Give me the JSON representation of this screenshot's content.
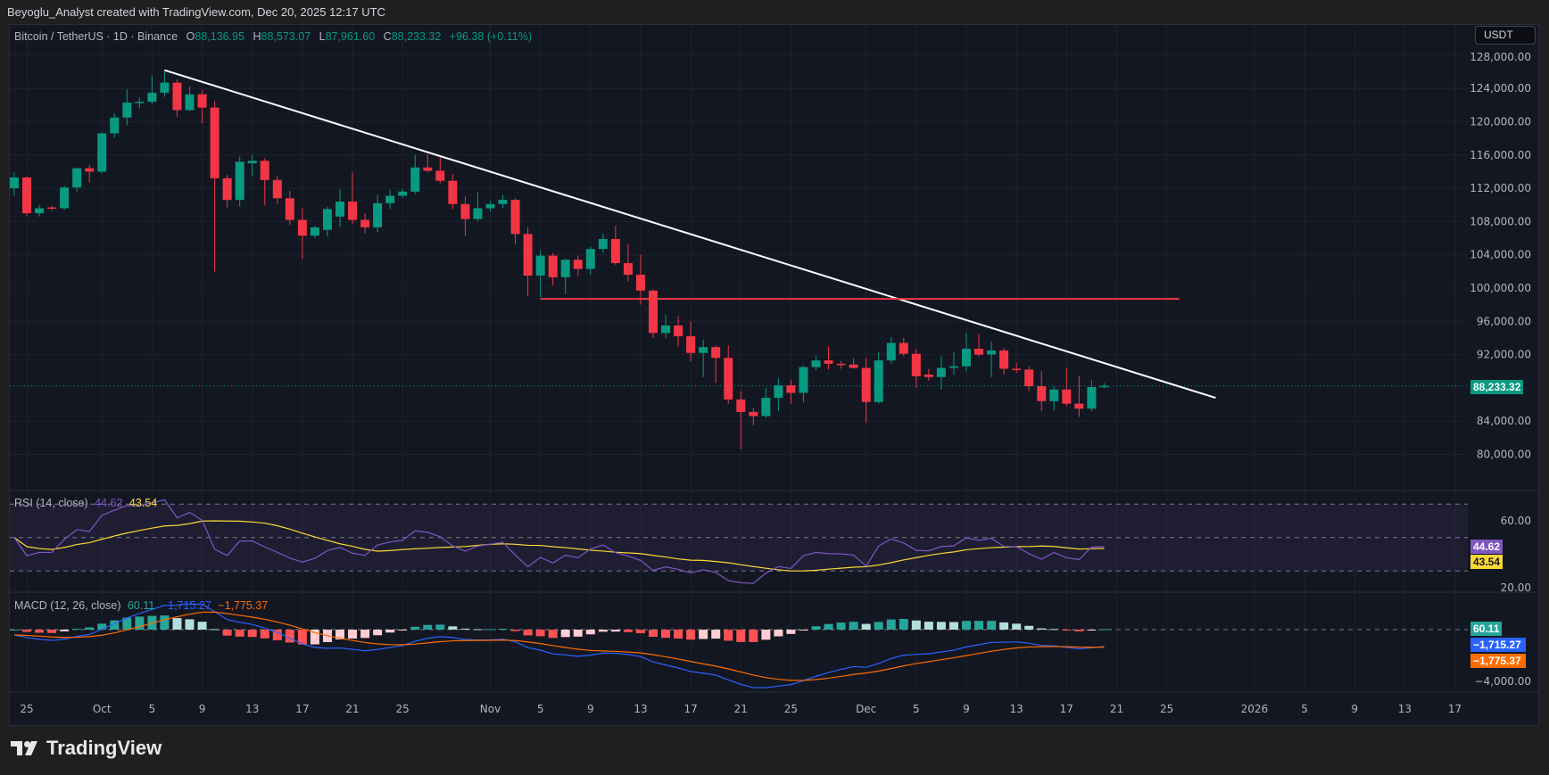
{
  "header": {
    "attribution": "Beyoglu_Analyst created with TradingView.com, Dec 20, 2025 12:17 UTC"
  },
  "legend": {
    "symbol": "Bitcoin / TetherUS · 1D · Binance",
    "o_label": "O",
    "open": "88,136.95",
    "h_label": "H",
    "high": "88,573.07",
    "l_label": "L",
    "low": "87,961.60",
    "c_label": "C",
    "close": "88,233.32",
    "change": "+96.38 (+0.11%)"
  },
  "currency_button": "USDT",
  "rsi": {
    "title": "RSI (14, close)",
    "value": "44.62",
    "ma": "43.54",
    "axis": [
      "60.00",
      "20.00"
    ]
  },
  "macd": {
    "title": "MACD (12, 26, close)",
    "hist": "60.11",
    "macd": "−1,715.27",
    "signal": "−1,775.37",
    "axis_low": "−4,000.00"
  },
  "logo_text": "TradingView",
  "colors": {
    "up": "#089981",
    "down": "#f23645",
    "rsi": "#7e57c2",
    "rsi_ma": "#fdd835",
    "macd": "#2962ff",
    "signal": "#ff6d00",
    "trendline": "#ffffff",
    "level": "#f23645"
  },
  "chart_data": {
    "type": "candlestick",
    "title": "Bitcoin / TetherUS · 1D · Binance",
    "first_candle_date": "Sep 24, 2025",
    "last_price": "88,233.32",
    "last_price_value": 88233.32,
    "ylim": [
      78000,
      128000
    ],
    "price_ticks": [
      "128,000.00",
      "124,000.00",
      "120,000.00",
      "116,000.00",
      "112,000.00",
      "108,000.00",
      "104,000.00",
      "100,000.00",
      "96,000.00",
      "92,000.00",
      "84,000.00",
      "80,000.00"
    ],
    "price_tick_values": [
      128000,
      124000,
      120000,
      116000,
      112000,
      108000,
      104000,
      100000,
      96000,
      92000,
      84000,
      80000
    ],
    "time_ticks": [
      {
        "label": "25",
        "day": 0
      },
      {
        "label": "Oct",
        "day": 6
      },
      {
        "label": "5",
        "day": 10
      },
      {
        "label": "9",
        "day": 14
      },
      {
        "label": "13",
        "day": 18
      },
      {
        "label": "17",
        "day": 22
      },
      {
        "label": "21",
        "day": 26
      },
      {
        "label": "25",
        "day": 30
      },
      {
        "label": "Nov",
        "day": 37
      },
      {
        "label": "5",
        "day": 41
      },
      {
        "label": "9",
        "day": 45
      },
      {
        "label": "13",
        "day": 49
      },
      {
        "label": "17",
        "day": 53
      },
      {
        "label": "21",
        "day": 57
      },
      {
        "label": "25",
        "day": 61
      },
      {
        "label": "Dec",
        "day": 67
      },
      {
        "label": "5",
        "day": 71
      },
      {
        "label": "9",
        "day": 75
      },
      {
        "label": "13",
        "day": 79
      },
      {
        "label": "17",
        "day": 83
      },
      {
        "label": "21",
        "day": 87
      },
      {
        "label": "25",
        "day": 91
      },
      {
        "label": "2026",
        "day": 98
      },
      {
        "label": "5",
        "day": 102
      },
      {
        "label": "9",
        "day": 106
      },
      {
        "label": "13",
        "day": 110
      },
      {
        "label": "17",
        "day": 114
      }
    ],
    "ohlc": [
      [
        112000,
        113900,
        111100,
        113300
      ],
      [
        113300,
        113400,
        108700,
        109000
      ],
      [
        109000,
        110000,
        108600,
        109600
      ],
      [
        109700,
        109900,
        109300,
        109600
      ],
      [
        109600,
        112300,
        109400,
        112100
      ],
      [
        112100,
        114500,
        111600,
        114400
      ],
      [
        114400,
        114800,
        112700,
        114000
      ],
      [
        114000,
        118700,
        113800,
        118600
      ],
      [
        118600,
        121000,
        118100,
        120500
      ],
      [
        120500,
        123900,
        119600,
        122300
      ],
      [
        122300,
        122900,
        121600,
        122400
      ],
      [
        122400,
        125600,
        122100,
        123500
      ],
      [
        123500,
        126200,
        123000,
        124700
      ],
      [
        124700,
        125100,
        120600,
        121400
      ],
      [
        121400,
        124200,
        121300,
        123300
      ],
      [
        123300,
        123800,
        119800,
        121700
      ],
      [
        121700,
        122500,
        102000,
        113200
      ],
      [
        113200,
        113600,
        109700,
        110600
      ],
      [
        110600,
        115800,
        109800,
        115200
      ],
      [
        115000,
        116000,
        113400,
        115300
      ],
      [
        115300,
        115600,
        110000,
        113000
      ],
      [
        113000,
        113500,
        110100,
        110800
      ],
      [
        110800,
        111700,
        107600,
        108200
      ],
      [
        108200,
        109600,
        103500,
        106300
      ],
      [
        106300,
        107500,
        106000,
        107300
      ],
      [
        107000,
        109800,
        106200,
        109500
      ],
      [
        108600,
        111900,
        107300,
        110400
      ],
      [
        110400,
        113900,
        107700,
        108200
      ],
      [
        108200,
        109000,
        106600,
        107300
      ],
      [
        107300,
        111200,
        106700,
        110200
      ],
      [
        110200,
        111800,
        109500,
        111100
      ],
      [
        111100,
        111900,
        110900,
        111600
      ],
      [
        111600,
        116000,
        111300,
        114500
      ],
      [
        114500,
        116100,
        113900,
        114100
      ],
      [
        114100,
        115900,
        112600,
        112900
      ],
      [
        112900,
        113700,
        109500,
        110100
      ],
      [
        110100,
        111000,
        106300,
        108300
      ],
      [
        108300,
        111500,
        108000,
        109600
      ],
      [
        109600,
        110500,
        109200,
        110100
      ],
      [
        110100,
        111200,
        109600,
        110600
      ],
      [
        110600,
        110800,
        105300,
        106500
      ],
      [
        106500,
        107300,
        99000,
        101500
      ],
      [
        101500,
        104500,
        98900,
        103900
      ],
      [
        103900,
        104200,
        100300,
        101300
      ],
      [
        101300,
        103500,
        99300,
        103400
      ],
      [
        103400,
        103900,
        101500,
        102300
      ],
      [
        102300,
        105000,
        101600,
        104700
      ],
      [
        104700,
        106600,
        104200,
        105900
      ],
      [
        105900,
        107500,
        102800,
        103000
      ],
      [
        103000,
        105300,
        100800,
        101600
      ],
      [
        101600,
        104000,
        98000,
        99700
      ],
      [
        99700,
        99800,
        94000,
        94600
      ],
      [
        94600,
        96800,
        94000,
        95500
      ],
      [
        95500,
        96600,
        93000,
        94200
      ],
      [
        94200,
        96000,
        91200,
        92200
      ],
      [
        92200,
        93800,
        89300,
        92900
      ],
      [
        92900,
        93100,
        88600,
        91600
      ],
      [
        91600,
        93100,
        86100,
        86600
      ],
      [
        86600,
        87600,
        80600,
        85100
      ],
      [
        85100,
        85600,
        83500,
        84600
      ],
      [
        84600,
        88000,
        84400,
        86800
      ],
      [
        86800,
        89200,
        85200,
        88300
      ],
      [
        88300,
        89000,
        86100,
        87400
      ],
      [
        87400,
        90700,
        86300,
        90500
      ],
      [
        90500,
        91900,
        90100,
        91300
      ],
      [
        91300,
        93000,
        90200,
        90900
      ],
      [
        90900,
        91200,
        90300,
        90800
      ],
      [
        90800,
        91600,
        90300,
        90400
      ],
      [
        90400,
        91600,
        83800,
        86300
      ],
      [
        86300,
        92300,
        86100,
        91300
      ],
      [
        91300,
        94100,
        90900,
        93400
      ],
      [
        93400,
        94000,
        91800,
        92100
      ],
      [
        92100,
        92700,
        88000,
        89400
      ],
      [
        89600,
        90300,
        88900,
        89300
      ],
      [
        89300,
        91800,
        87800,
        90400
      ],
      [
        90400,
        92300,
        89600,
        90600
      ],
      [
        90600,
        94600,
        90000,
        92700
      ],
      [
        92700,
        94500,
        91800,
        92000
      ],
      [
        92000,
        93600,
        89300,
        92500
      ],
      [
        92500,
        92800,
        89600,
        90300
      ],
      [
        90300,
        91000,
        89800,
        90200
      ],
      [
        90200,
        90600,
        87600,
        88200
      ],
      [
        88200,
        90000,
        85200,
        86400
      ],
      [
        86400,
        88200,
        85300,
        87800
      ],
      [
        87800,
        90400,
        85800,
        86100
      ],
      [
        86100,
        89400,
        84500,
        85500
      ],
      [
        85500,
        88900,
        85200,
        88100
      ],
      [
        88136.95,
        88573.07,
        87961.6,
        88233.32
      ]
    ],
    "drawings": {
      "trendline": {
        "from": {
          "day": 11,
          "price": 126200
        },
        "to": {
          "day": 94.9,
          "price": 86800
        }
      },
      "horizontal_level": {
        "from_day": 41,
        "to_day": 92,
        "price": 98700
      }
    }
  }
}
